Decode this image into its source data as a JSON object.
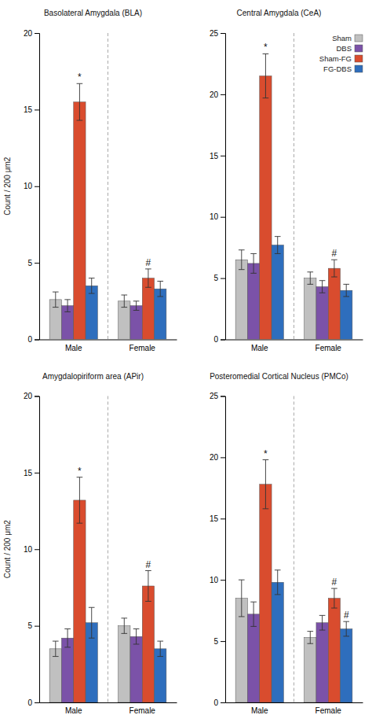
{
  "chart_data": [
    {
      "type": "bar",
      "title": "Basolateral Amygdala (BLA)",
      "y_label": "Count / 200 μm2",
      "categories": [
        "Male",
        "Female"
      ],
      "series": [
        {
          "name": "Sham",
          "color": "#c0c0c0",
          "values": [
            2.6,
            2.5
          ],
          "errors": [
            0.5,
            0.4
          ],
          "annotations": [
            null,
            null
          ]
        },
        {
          "name": "DBS",
          "color": "#7b52a8",
          "values": [
            2.2,
            2.2
          ],
          "errors": [
            0.4,
            0.3
          ],
          "annotations": [
            null,
            null
          ]
        },
        {
          "name": "Sham-FG",
          "color": "#d94c2e",
          "values": [
            15.5,
            4.0
          ],
          "errors": [
            1.2,
            0.6
          ],
          "annotations": [
            "*",
            "#"
          ]
        },
        {
          "name": "FG-DBS",
          "color": "#2e6ebd",
          "values": [
            3.5,
            3.3
          ],
          "errors": [
            0.5,
            0.5
          ],
          "annotations": [
            null,
            null
          ]
        }
      ],
      "ylim": [
        0,
        20
      ],
      "yticks": [
        0,
        5,
        10,
        15,
        20
      ]
    },
    {
      "type": "bar",
      "title": "Central Amygdala (CeA)",
      "categories": [
        "Male",
        "Female"
      ],
      "series": [
        {
          "name": "Sham",
          "color": "#c0c0c0",
          "values": [
            6.5,
            5.0
          ],
          "errors": [
            0.8,
            0.5
          ],
          "annotations": [
            null,
            null
          ]
        },
        {
          "name": "DBS",
          "color": "#7b52a8",
          "values": [
            6.2,
            4.3
          ],
          "errors": [
            0.8,
            0.5
          ],
          "annotations": [
            null,
            null
          ]
        },
        {
          "name": "Sham-FG",
          "color": "#d94c2e",
          "values": [
            21.5,
            5.8
          ],
          "errors": [
            1.8,
            0.7
          ],
          "annotations": [
            "*",
            "#"
          ]
        },
        {
          "name": "FG-DBS",
          "color": "#2e6ebd",
          "values": [
            7.7,
            4.0
          ],
          "errors": [
            0.7,
            0.5
          ],
          "annotations": [
            null,
            null
          ]
        }
      ],
      "ylim": [
        0,
        25
      ],
      "yticks": [
        0,
        5,
        10,
        15,
        20,
        25
      ],
      "legend": "upper right"
    },
    {
      "type": "bar",
      "title": "Amygdalopiriform area (APir)",
      "y_label": "Count / 200 μm2",
      "categories": [
        "Male",
        "Female"
      ],
      "series": [
        {
          "name": "Sham",
          "color": "#c0c0c0",
          "values": [
            3.5,
            5.0
          ],
          "errors": [
            0.5,
            0.5
          ],
          "annotations": [
            null,
            null
          ]
        },
        {
          "name": "DBS",
          "color": "#7b52a8",
          "values": [
            4.2,
            4.3
          ],
          "errors": [
            0.6,
            0.5
          ],
          "annotations": [
            null,
            null
          ]
        },
        {
          "name": "Sham-FG",
          "color": "#d94c2e",
          "values": [
            13.2,
            7.6
          ],
          "errors": [
            1.5,
            1.0
          ],
          "annotations": [
            "*",
            "#"
          ]
        },
        {
          "name": "FG-DBS",
          "color": "#2e6ebd",
          "values": [
            5.2,
            3.5
          ],
          "errors": [
            1.0,
            0.5
          ],
          "annotations": [
            null,
            null
          ]
        }
      ],
      "ylim": [
        0,
        20
      ],
      "yticks": [
        0,
        5,
        10,
        15,
        20
      ]
    },
    {
      "type": "bar",
      "title": "Posteromedial Cortical Nucleus (PMCo)",
      "categories": [
        "Male",
        "Female"
      ],
      "series": [
        {
          "name": "Sham",
          "color": "#c0c0c0",
          "values": [
            8.5,
            5.3
          ],
          "errors": [
            1.5,
            0.5
          ],
          "annotations": [
            null,
            null
          ]
        },
        {
          "name": "DBS",
          "color": "#7b52a8",
          "values": [
            7.2,
            6.5
          ],
          "errors": [
            1.0,
            0.6
          ],
          "annotations": [
            null,
            null
          ]
        },
        {
          "name": "Sham-FG",
          "color": "#d94c2e",
          "values": [
            17.8,
            8.5
          ],
          "errors": [
            2.0,
            0.8
          ],
          "annotations": [
            "*",
            "#"
          ]
        },
        {
          "name": "FG-DBS",
          "color": "#2e6ebd",
          "values": [
            9.8,
            6.0
          ],
          "errors": [
            1.0,
            0.6
          ],
          "annotations": [
            null,
            "#"
          ]
        }
      ],
      "ylim": [
        0,
        25
      ],
      "yticks": [
        0,
        5,
        10,
        15,
        20,
        25
      ]
    }
  ]
}
